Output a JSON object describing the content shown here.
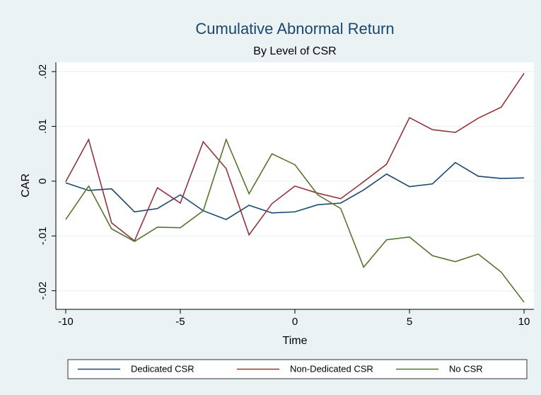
{
  "chart_data": {
    "type": "line",
    "title": "Cumulative Abnormal Return",
    "subtitle": "By Level of CSR",
    "x_label": "Time",
    "y_label": "CAR",
    "x": [
      -10,
      -9,
      -8,
      -7,
      -6,
      -5,
      -4,
      -3,
      -2,
      -1,
      0,
      1,
      2,
      3,
      4,
      5,
      6,
      7,
      8,
      9,
      10
    ],
    "series": [
      {
        "name": "Dedicated CSR",
        "color": "#1a476f",
        "values": [
          -0.0003,
          -0.0017,
          -0.0014,
          -0.0056,
          -0.005,
          -0.0025,
          -0.0054,
          -0.007,
          -0.0044,
          -0.0058,
          -0.0056,
          -0.0043,
          -0.004,
          -0.0016,
          0.0013,
          -0.001,
          -0.0005,
          0.0034,
          0.0009,
          0.0005,
          0.0006
        ]
      },
      {
        "name": "Non-Dedicated CSR",
        "color": "#90353b",
        "values": [
          -0.0001,
          0.0076,
          -0.0076,
          -0.0109,
          -0.0012,
          -0.004,
          0.0072,
          0.0023,
          -0.0098,
          -0.0041,
          -0.0009,
          -0.0022,
          -0.0032,
          -0.0001,
          0.0031,
          0.0116,
          0.0094,
          0.0089,
          0.0115,
          0.0135,
          0.0197
        ]
      },
      {
        "name": "No CSR",
        "color": "#55752f",
        "values": [
          -0.007,
          -0.0009,
          -0.0087,
          -0.011,
          -0.0084,
          -0.0085,
          -0.0054,
          0.0076,
          -0.0023,
          0.005,
          0.003,
          -0.0025,
          -0.005,
          -0.0157,
          -0.0107,
          -0.0102,
          -0.0136,
          -0.0147,
          -0.0133,
          -0.0166,
          -0.0221
        ]
      }
    ],
    "xlim": [
      -10.43,
      10.43
    ],
    "ylim": [
      -0.0234,
      0.0217
    ],
    "xticks": [
      -10,
      -5,
      0,
      5,
      10
    ],
    "yticks": [
      {
        "value": -0.02,
        "label": "-.02"
      },
      {
        "value": -0.01,
        "label": "-.01"
      },
      0,
      {
        "value": 0.01,
        "label": ".01"
      },
      {
        "value": 0.02,
        "label": ".02"
      }
    ],
    "grid": true,
    "legend": "bottom"
  }
}
